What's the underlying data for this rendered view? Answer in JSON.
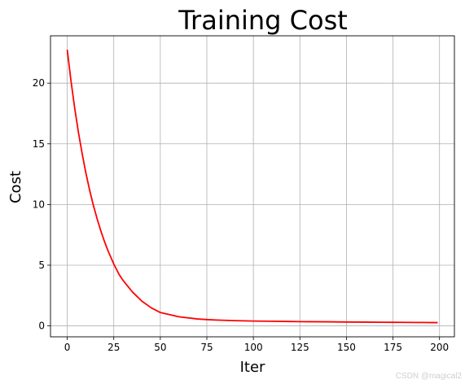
{
  "chart_data": {
    "type": "line",
    "title": "Training Cost",
    "xlabel": "Iter",
    "ylabel": "Cost",
    "xlim": [
      -9,
      208
    ],
    "ylim": [
      -0.9,
      23.9
    ],
    "xticks": [
      0,
      25,
      50,
      75,
      100,
      125,
      150,
      175,
      200
    ],
    "yticks": [
      0,
      5,
      10,
      15,
      20
    ],
    "grid": true,
    "series": [
      {
        "color": "#ff0000",
        "x": [
          0,
          2,
          4,
          6,
          8,
          10,
          12,
          14,
          16,
          18,
          20,
          22,
          25,
          28,
          30,
          35,
          40,
          45,
          50,
          60,
          70,
          75,
          80,
          90,
          100,
          110,
          120,
          125,
          130,
          140,
          150,
          160,
          170,
          175,
          180,
          190,
          199
        ],
        "y": [
          22.75,
          20.2,
          17.95,
          15.95,
          14.2,
          12.6,
          11.2,
          9.95,
          8.85,
          7.85,
          6.95,
          6.15,
          5.1,
          4.2,
          3.75,
          2.8,
          2.05,
          1.5,
          1.1,
          0.75,
          0.57,
          0.52,
          0.48,
          0.43,
          0.4,
          0.38,
          0.36,
          0.35,
          0.345,
          0.335,
          0.32,
          0.31,
          0.3,
          0.295,
          0.29,
          0.28,
          0.27
        ]
      }
    ]
  },
  "watermark": "CSDN @magical2"
}
